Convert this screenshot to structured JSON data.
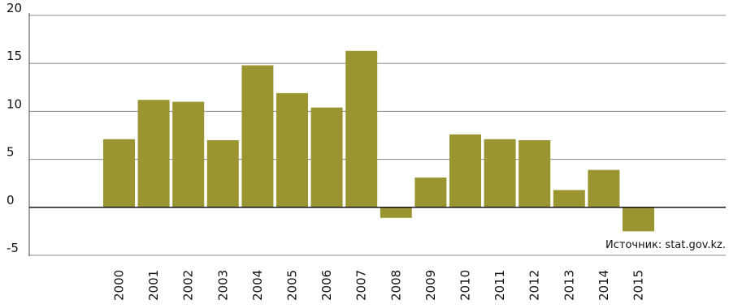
{
  "chart_data": {
    "type": "bar",
    "categories": [
      "2000",
      "2001",
      "2002",
      "2003",
      "2004",
      "2005",
      "2006",
      "2007",
      "2008",
      "2009",
      "2010",
      "2011",
      "2012",
      "2013",
      "2014",
      "2015"
    ],
    "values": [
      7.1,
      11.2,
      11.0,
      7.0,
      14.8,
      11.9,
      10.4,
      16.3,
      -1.1,
      3.1,
      7.6,
      7.1,
      7.0,
      1.8,
      3.9,
      -2.5
    ],
    "ylim": [
      -5,
      20
    ],
    "yticks": [
      "20",
      "15",
      "10",
      "5",
      "0",
      "-5"
    ],
    "ytick_values": [
      20,
      15,
      10,
      5,
      0,
      -5
    ],
    "grid": true,
    "bar_color": "#9a9530",
    "source": "Источник: stat.gov.kz."
  }
}
